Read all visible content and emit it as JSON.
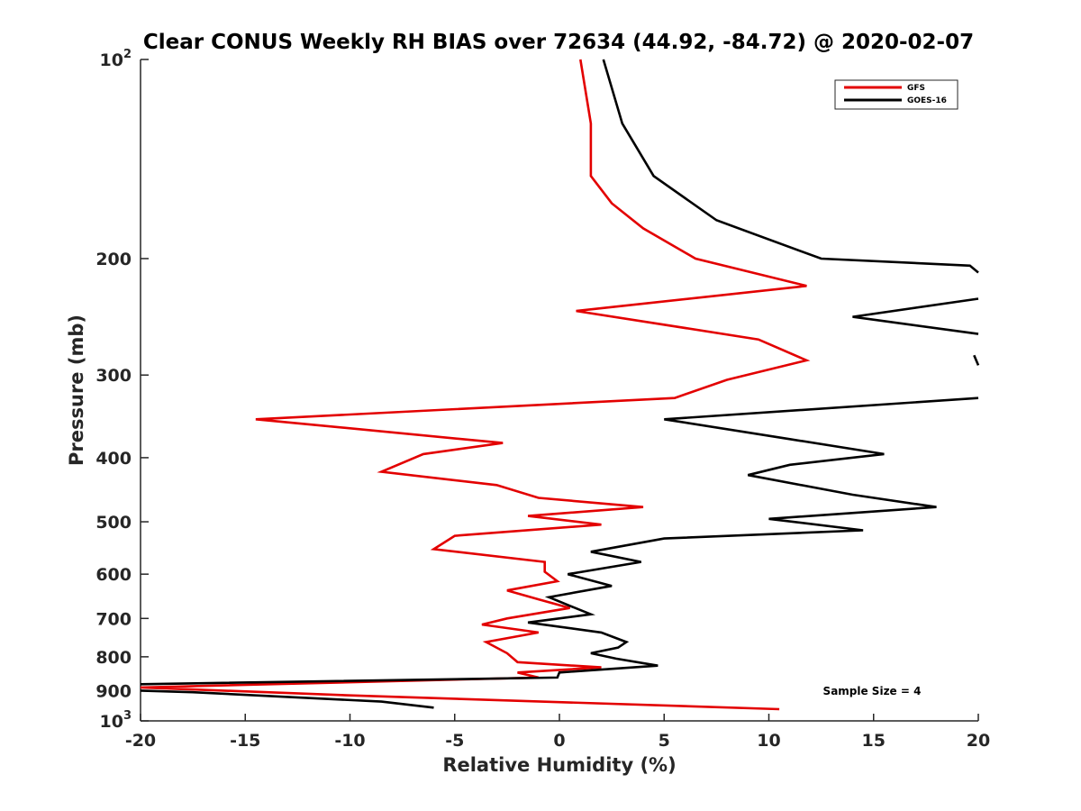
{
  "chart_data": {
    "type": "line",
    "title": "Clear CONUS Weekly RH BIAS over 72634 (44.92, -84.72) @ 2020-02-07",
    "xlabel": "Relative Humidity (%)",
    "ylabel": "Pressure (mb)",
    "xlim": [
      -20,
      20
    ],
    "ylim": [
      100,
      1000
    ],
    "yscale": "log",
    "y_reversed": true,
    "xticks": [
      -20,
      -15,
      -10,
      -5,
      0,
      5,
      10,
      15,
      20
    ],
    "yticks": [
      {
        "value": 100,
        "label": "10",
        "sup": "2"
      },
      {
        "value": 200,
        "label": "200"
      },
      {
        "value": 300,
        "label": "300"
      },
      {
        "value": 400,
        "label": "400"
      },
      {
        "value": 500,
        "label": "500"
      },
      {
        "value": 600,
        "label": "600"
      },
      {
        "value": 700,
        "label": "700"
      },
      {
        "value": 800,
        "label": "800"
      },
      {
        "value": 900,
        "label": "900"
      },
      {
        "value": 1000,
        "label": "10",
        "sup": "3"
      }
    ],
    "legend_position": "top-right",
    "annotation": "Sample Size = 4",
    "series": [
      {
        "name": "GFS",
        "color": "#e30000",
        "points": [
          [
            1.0,
            100
          ],
          [
            1.5,
            125
          ],
          [
            1.5,
            150
          ],
          [
            2.5,
            165
          ],
          [
            4.0,
            180
          ],
          [
            6.5,
            200
          ],
          [
            11.8,
            220
          ],
          [
            0.8,
            240
          ],
          [
            9.5,
            265
          ],
          [
            11.8,
            285
          ],
          [
            8.0,
            305
          ],
          [
            5.5,
            325
          ],
          [
            -14.5,
            350
          ],
          [
            -2.7,
            380
          ],
          [
            -6.5,
            395
          ],
          [
            -8.5,
            420
          ],
          [
            -3.0,
            440
          ],
          [
            -1.0,
            460
          ],
          [
            4.0,
            475
          ],
          [
            -1.5,
            490
          ],
          [
            2.0,
            505
          ],
          [
            -5.0,
            525
          ],
          [
            -6.0,
            550
          ],
          [
            -0.7,
            575
          ],
          [
            -0.7,
            595
          ],
          [
            -0.1,
            615
          ],
          [
            -2.5,
            635
          ],
          [
            -1.0,
            655
          ],
          [
            0.5,
            675
          ],
          [
            -2.5,
            700
          ],
          [
            -3.7,
            715
          ],
          [
            -1.0,
            735
          ],
          [
            -3.5,
            760
          ],
          [
            -2.5,
            790
          ],
          [
            -2.0,
            815
          ],
          [
            2.0,
            830
          ],
          [
            -2.0,
            845
          ],
          [
            -1.0,
            860
          ],
          [
            -20.0,
            890
          ],
          [
            -10.0,
            915
          ],
          [
            10.5,
            960
          ]
        ]
      },
      {
        "name": "GOES-16",
        "color": "#000000",
        "segments": [
          [
            [
              2.1,
              100
            ],
            [
              3.0,
              125
            ],
            [
              4.5,
              150
            ],
            [
              7.5,
              175
            ],
            [
              12.5,
              200
            ],
            [
              19.6,
              205
            ],
            [
              20.0,
              210
            ]
          ],
          [
            [
              20.0,
              230
            ],
            [
              14.0,
              245
            ],
            [
              20.0,
              260
            ]
          ],
          [
            [
              19.8,
              280
            ],
            [
              20.0,
              290
            ]
          ],
          [
            [
              20.0,
              325
            ],
            [
              5.0,
              350
            ],
            [
              11.0,
              375
            ],
            [
              15.5,
              395
            ],
            [
              11.0,
              410
            ],
            [
              9.0,
              425
            ],
            [
              14.0,
              455
            ],
            [
              18.0,
              475
            ],
            [
              10.0,
              495
            ],
            [
              14.5,
              515
            ],
            [
              5.0,
              530
            ],
            [
              1.5,
              555
            ],
            [
              3.9,
              575
            ],
            [
              0.4,
              600
            ],
            [
              2.5,
              625
            ],
            [
              -0.5,
              650
            ],
            [
              0.5,
              670
            ],
            [
              1.5,
              690
            ],
            [
              -1.5,
              710
            ],
            [
              2.0,
              735
            ],
            [
              3.2,
              760
            ],
            [
              2.8,
              775
            ],
            [
              1.5,
              790
            ],
            [
              2.7,
              805
            ],
            [
              4.7,
              825
            ],
            [
              0.0,
              845
            ],
            [
              -0.1,
              860
            ],
            [
              -20.0,
              880
            ]
          ],
          [
            [
              -20.0,
              900
            ],
            [
              -17.5,
              905
            ],
            [
              -8.5,
              935
            ],
            [
              -6.0,
              955
            ]
          ]
        ]
      }
    ]
  }
}
